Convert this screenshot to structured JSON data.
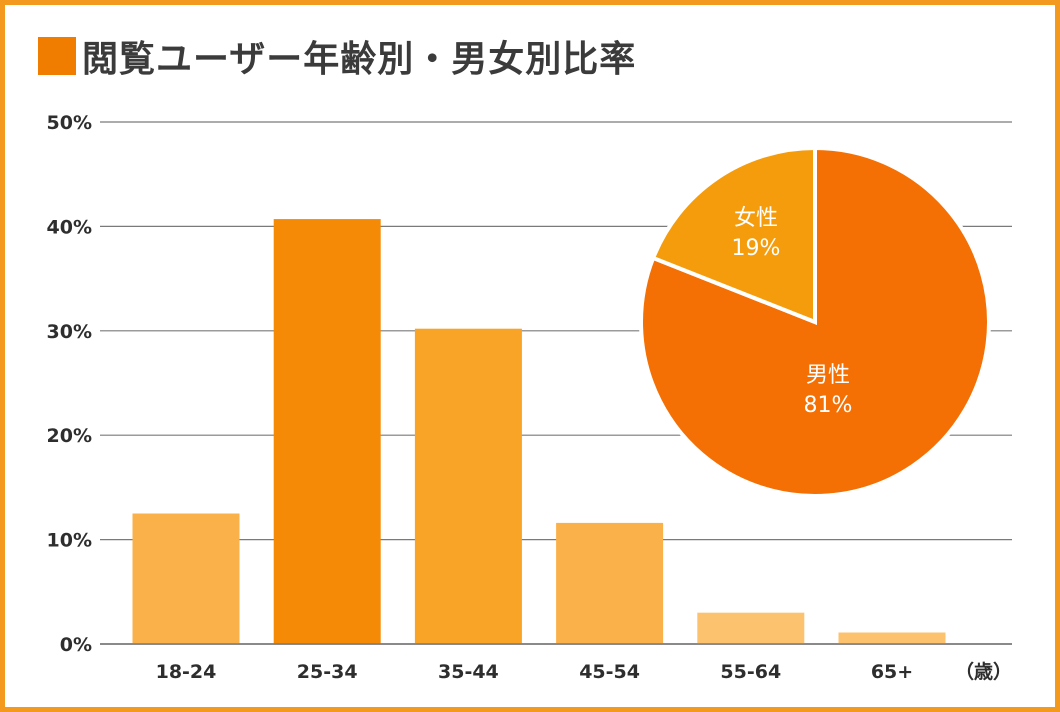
{
  "title": "閲覧ユーザー年齢別・男女別比率",
  "colors": {
    "frame": "#f39a1e",
    "title_square": "#f07d00",
    "grid": "#7a7a7a"
  },
  "chart_data": [
    {
      "type": "bar",
      "title": "",
      "xlabel": "",
      "x_unit": "（歳）",
      "ylabel": "",
      "ylim": [
        0,
        50
      ],
      "yticks": [
        "0%",
        "10%",
        "20%",
        "30%",
        "40%",
        "50%"
      ],
      "ytick_values": [
        0,
        10,
        20,
        30,
        40,
        50
      ],
      "grid": true,
      "categories": [
        "18-24",
        "25-34",
        "35-44",
        "45-54",
        "55-64",
        "65+"
      ],
      "values": [
        12.5,
        40.7,
        30.2,
        11.6,
        3.0,
        1.1
      ],
      "colors": [
        "#fbb14a",
        "#f58a06",
        "#f9a426",
        "#fbb14a",
        "#fcc26e",
        "#fcc26e"
      ]
    },
    {
      "type": "pie",
      "slices": [
        {
          "label": "男性",
          "value_label": "81%",
          "value": 81,
          "color": "#f47004"
        },
        {
          "label": "女性",
          "value_label": "19%",
          "value": 19,
          "color": "#f59c0c"
        }
      ]
    }
  ]
}
